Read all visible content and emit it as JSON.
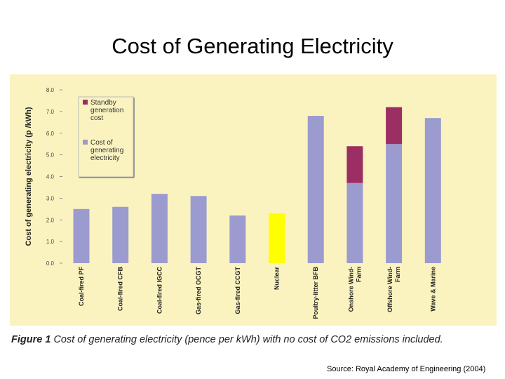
{
  "slide": {
    "title": "Cost of Generating Electricity",
    "source": "Source: Royal Academy of Engineering (2004)"
  },
  "figure": {
    "label": "Figure 1",
    "caption": "Cost of generating electricity (pence per kWh) with no cost of CO2 emissions included."
  },
  "colors": {
    "background": "#fbf3bf",
    "base": "#9b9bd0",
    "standby": "#9b2e63",
    "nuclear": "#ffff00"
  },
  "chart_data": {
    "type": "bar",
    "stacked": true,
    "ylabel": "Cost of generating electricity (p /kWh)",
    "ylim": [
      0,
      8
    ],
    "yticks": [
      "0.0",
      "1.0",
      "2.0",
      "3.0",
      "4.0",
      "5.0",
      "6.0",
      "7.0",
      "8.0"
    ],
    "grid": false,
    "legend_position": "top-left",
    "categories": [
      [
        "Coal-fired PF"
      ],
      [
        "Coal-fired CFB"
      ],
      [
        "Coal-fired IGCC"
      ],
      [
        "Gas-fired OCGT"
      ],
      [
        "Gas-fired CCGT"
      ],
      [
        "Nuclear"
      ],
      [
        "Poultry-litter BFB"
      ],
      [
        "Onshore Wind-",
        "Farm"
      ],
      [
        "Offshore Wind-",
        "Farm"
      ],
      [
        "Wave & Marine"
      ]
    ],
    "series": [
      {
        "name": "Cost of generating electricity",
        "color": "#9b9bd0",
        "values": [
          2.5,
          2.6,
          3.2,
          3.1,
          2.2,
          2.3,
          6.8,
          3.7,
          5.5,
          6.7
        ],
        "highlight_index": 5,
        "highlight_color": "#ffff00"
      },
      {
        "name": "Standby generation cost",
        "color": "#9b2e63",
        "values": [
          0,
          0,
          0,
          0,
          0,
          0,
          0,
          1.7,
          1.7,
          0
        ]
      }
    ],
    "legend": [
      {
        "label": [
          "Standby",
          "generation",
          "cost"
        ],
        "color": "#9b2e63"
      },
      {
        "label": [
          "Cost of",
          "generating",
          "electricity"
        ],
        "color": "#9b9bd0"
      }
    ]
  }
}
